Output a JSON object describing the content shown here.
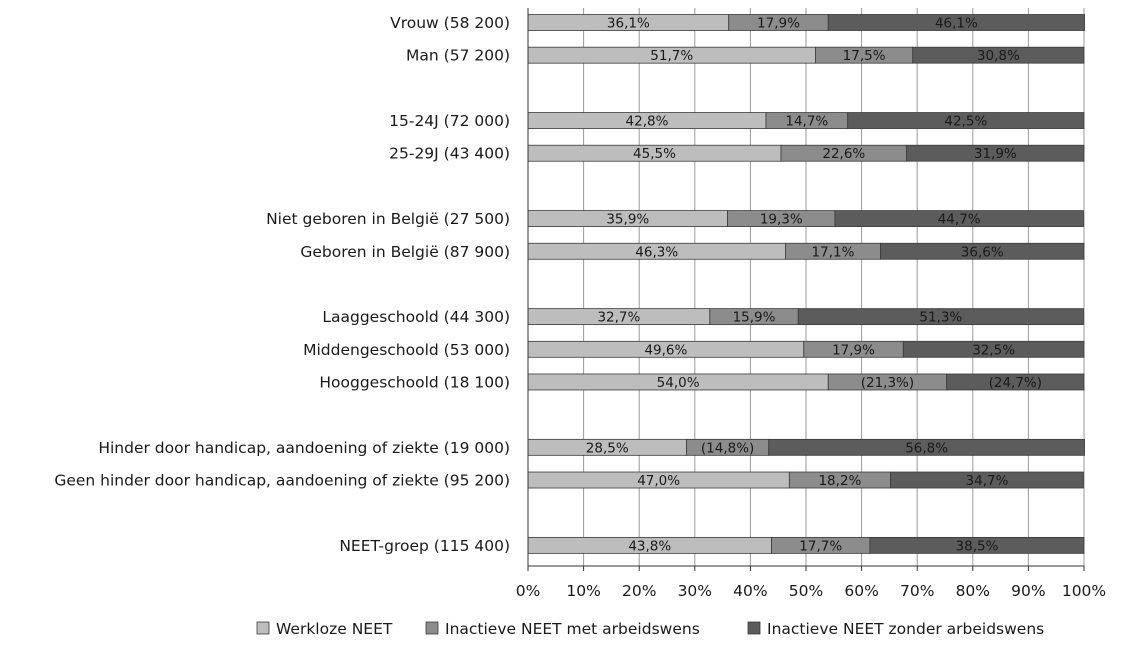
{
  "chart_data": {
    "type": "bar",
    "orientation": "horizontal",
    "stacked": true,
    "percent_scale": true,
    "title": "",
    "xlabel": "",
    "ylabel": "",
    "xlim": [
      0,
      100
    ],
    "x_ticks": [
      "0%",
      "10%",
      "20%",
      "30%",
      "40%",
      "50%",
      "60%",
      "70%",
      "80%",
      "90%",
      "100%"
    ],
    "grid": true,
    "legend_position": "bottom",
    "categories": [
      "Vrouw (58 200)",
      "Man (57 200)",
      "",
      "15-24J (72 000)",
      "25-29J (43 400)",
      "",
      "Niet geboren in België (27 500)",
      "Geboren in België (87 900)",
      "",
      "Laaggeschoold (44 300)",
      "Middengeschoold (53 000)",
      "Hooggeschoold (18 100)",
      "",
      "Hinder door handicap, aandoening of ziekte (19 000)",
      "Geen hinder door handicap, aandoening of ziekte (95 200)",
      "",
      "NEET-groep (115 400)"
    ],
    "series": [
      {
        "name": "Werkloze NEET",
        "color": "#bdbdbd",
        "values": [
          36.1,
          51.7,
          null,
          42.8,
          45.5,
          null,
          35.9,
          46.3,
          null,
          32.7,
          49.6,
          54.0,
          null,
          28.5,
          47.0,
          null,
          43.8
        ],
        "labels": [
          "36,1%",
          "51,7%",
          "",
          "42,8%",
          "45,5%",
          "",
          "35,9%",
          "46,3%",
          "",
          "32,7%",
          "49,6%",
          "54,0%",
          "",
          "28,5%",
          "47,0%",
          "",
          "43,8%"
        ]
      },
      {
        "name": "Inactieve NEET met arbeidswens",
        "color": "#8c8c8c",
        "values": [
          17.9,
          17.5,
          null,
          14.7,
          22.6,
          null,
          19.3,
          17.1,
          null,
          15.9,
          17.9,
          21.3,
          null,
          14.8,
          18.2,
          null,
          17.7
        ],
        "labels": [
          "17,9%",
          "17,5%",
          "",
          "14,7%",
          "22,6%",
          "",
          "19,3%",
          "17,1%",
          "",
          "15,9%",
          "17,9%",
          "(21,3%)",
          "",
          "(14,8%)",
          "18,2%",
          "",
          "17,7%"
        ]
      },
      {
        "name": "Inactieve NEET zonder arbeidswens",
        "color": "#5c5c5c",
        "values": [
          46.1,
          30.8,
          null,
          42.5,
          31.9,
          null,
          44.7,
          36.6,
          null,
          51.3,
          32.5,
          24.7,
          null,
          56.8,
          34.7,
          null,
          38.5
        ],
        "labels": [
          "46,1%",
          "30,8%",
          "",
          "42,5%",
          "31,9%",
          "",
          "44,7%",
          "36,6%",
          "",
          "51,3%",
          "32,5%",
          "(24,7%)",
          "",
          "56,8%",
          "34,7%",
          "",
          "38,5%"
        ]
      }
    ]
  }
}
